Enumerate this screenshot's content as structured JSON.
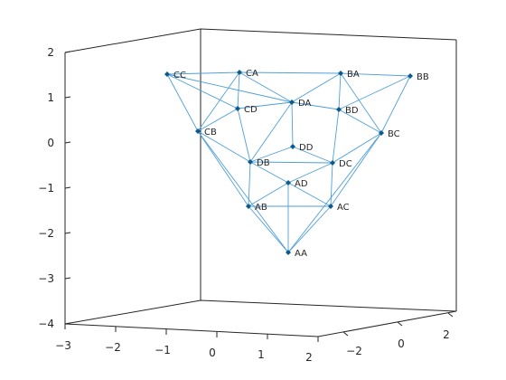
{
  "figure": {
    "z_ticks": [
      "2",
      "1",
      "0",
      "−1",
      "−2",
      "−3",
      "−4"
    ],
    "x_ticks": [
      "−3",
      "−2",
      "−1",
      "0",
      "1",
      "2"
    ],
    "y_ticks": [
      "−2",
      "0",
      "2"
    ]
  },
  "graph": {
    "nodes": [
      {
        "id": "AA",
        "label": "AA"
      },
      {
        "id": "AB",
        "label": "AB"
      },
      {
        "id": "AC",
        "label": "AC"
      },
      {
        "id": "AD",
        "label": "AD"
      },
      {
        "id": "BA",
        "label": "BA"
      },
      {
        "id": "BB",
        "label": "BB"
      },
      {
        "id": "BC",
        "label": "BC"
      },
      {
        "id": "BD",
        "label": "BD"
      },
      {
        "id": "CA",
        "label": "CA"
      },
      {
        "id": "CB",
        "label": "CB"
      },
      {
        "id": "CC",
        "label": "CC"
      },
      {
        "id": "CD",
        "label": "CD"
      },
      {
        "id": "DA",
        "label": "DA"
      },
      {
        "id": "DB",
        "label": "DB"
      },
      {
        "id": "DC",
        "label": "DC"
      },
      {
        "id": "DD",
        "label": "DD"
      }
    ],
    "edges": [
      [
        "CC",
        "CA"
      ],
      [
        "CA",
        "BA"
      ],
      [
        "BA",
        "BB"
      ],
      [
        "CC",
        "CB"
      ],
      [
        "CC",
        "CD"
      ],
      [
        "CC",
        "DA"
      ],
      [
        "CA",
        "CD"
      ],
      [
        "CA",
        "DA"
      ],
      [
        "CA",
        "CB"
      ],
      [
        "BA",
        "DA"
      ],
      [
        "BA",
        "BD"
      ],
      [
        "BA",
        "BC"
      ],
      [
        "BB",
        "BD"
      ],
      [
        "BB",
        "BC"
      ],
      [
        "CD",
        "DA"
      ],
      [
        "DA",
        "BD"
      ],
      [
        "CD",
        "CB"
      ],
      [
        "CB",
        "DB"
      ],
      [
        "CB",
        "AB"
      ],
      [
        "CB",
        "AA"
      ],
      [
        "CD",
        "DB"
      ],
      [
        "DA",
        "DD"
      ],
      [
        "DA",
        "DB"
      ],
      [
        "BD",
        "DC"
      ],
      [
        "BD",
        "BC"
      ],
      [
        "BC",
        "DC"
      ],
      [
        "BC",
        "AC"
      ],
      [
        "BC",
        "AA"
      ],
      [
        "DB",
        "DC"
      ],
      [
        "DD",
        "DB"
      ],
      [
        "DD",
        "DC"
      ],
      [
        "DB",
        "AB"
      ],
      [
        "DC",
        "AC"
      ],
      [
        "DB",
        "AD"
      ],
      [
        "DC",
        "AD"
      ],
      [
        "AD",
        "AB"
      ],
      [
        "AD",
        "AC"
      ],
      [
        "AD",
        "AA"
      ],
      [
        "AB",
        "AC"
      ],
      [
        "AB",
        "AA"
      ],
      [
        "AC",
        "AA"
      ]
    ]
  }
}
